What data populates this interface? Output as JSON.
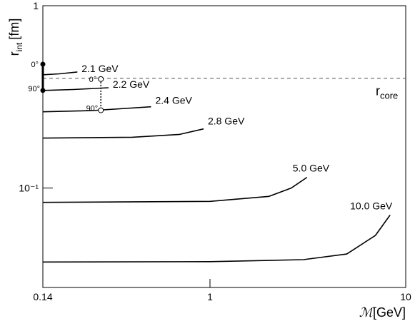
{
  "chart_data": {
    "type": "line",
    "ylabel": {
      "base": "r",
      "sub": "int",
      "rest": "[fm]"
    },
    "xlabel": {
      "base": "ℳ",
      "rest": "[GeV]"
    },
    "xlog": true,
    "ylog": true,
    "xlim": [
      0.14,
      10
    ],
    "ylim": [
      0.0285,
      1
    ],
    "xticks": [
      0.14,
      1,
      10
    ],
    "yticks": [
      1,
      {
        "value": 0.1,
        "label": "10⁻¹"
      }
    ],
    "series": [
      {
        "name": "2.1 GeV",
        "color": "#000000",
        "x": [
          0.14,
          0.17,
          0.21
        ],
        "values": [
          0.418,
          0.423,
          0.433
        ]
      },
      {
        "name": "2.2 GeV",
        "color": "#000000",
        "x": [
          0.14,
          0.2,
          0.303
        ],
        "values": [
          0.343,
          0.347,
          0.355
        ]
      },
      {
        "name": "2.4 GeV",
        "color": "#000000",
        "x": [
          0.14,
          0.25,
          0.5
        ],
        "values": [
          0.262,
          0.266,
          0.279
        ]
      },
      {
        "name": "2.8 GeV",
        "color": "#000000",
        "x": [
          0.14,
          0.4,
          0.7,
          0.927
        ],
        "values": [
          0.188,
          0.19,
          0.197,
          0.211
        ]
      },
      {
        "name": "5.0 GeV",
        "color": "#000000",
        "x": [
          0.14,
          1,
          2,
          2.6,
          3.13
        ],
        "values": [
          0.0835,
          0.0845,
          0.09,
          0.1,
          0.1145
        ]
      },
      {
        "name": "10.0 GeV",
        "color": "#000000",
        "x": [
          0.14,
          1,
          3,
          5,
          7,
          8.32
        ],
        "values": [
          0.0393,
          0.0395,
          0.0405,
          0.0435,
          0.055,
          0.0711
        ]
      }
    ],
    "reference": {
      "value": 0.4,
      "base": "r",
      "sub": "core"
    },
    "angle_markers": [
      {
        "x": 0.14,
        "y_top": 0.478,
        "y_bottom": 0.343,
        "label_top": "0°",
        "label_bottom": "90°",
        "filled": true
      },
      {
        "x": 0.277,
        "y_top": 0.396,
        "y_bottom": 0.267,
        "label_top": "0°",
        "label_bottom": "90°",
        "filled": false
      }
    ]
  }
}
